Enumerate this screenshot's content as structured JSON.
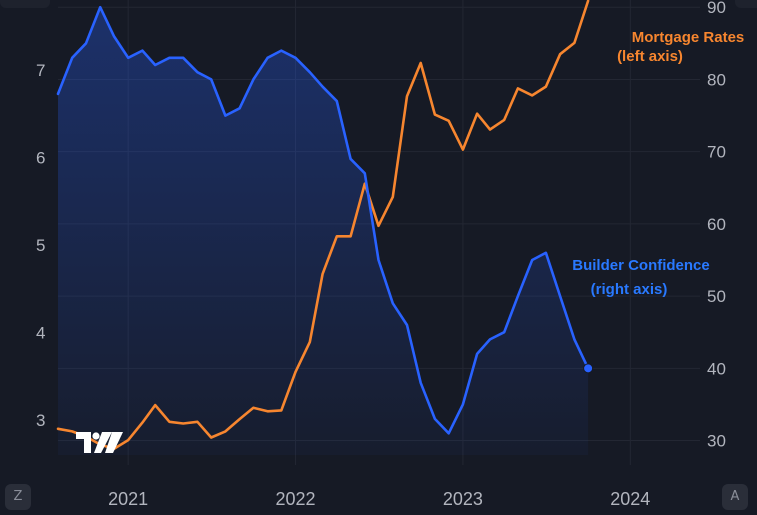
{
  "chart_data": {
    "type": "line",
    "x_axis": {
      "tick_labels": [
        "2021",
        "2022",
        "2023",
        "2024"
      ]
    },
    "left_axis": {
      "tick_labels": [
        "3",
        "4",
        "5",
        "6",
        "7"
      ],
      "range": [
        2.6,
        7.8
      ]
    },
    "right_axis": {
      "tick_labels": [
        "30",
        "40",
        "50",
        "60",
        "70",
        "80",
        "90"
      ],
      "range": [
        28,
        91
      ]
    },
    "grid": true,
    "series": [
      {
        "name": "Mortgage Rates",
        "axis": "left",
        "color": "#f7862f",
        "label_lines": [
          "Mortgage Rates",
          "(left axis)"
        ],
        "points": [
          [
            "2020-08-01",
            2.9
          ],
          [
            "2020-09-01",
            2.87
          ],
          [
            "2020-10-01",
            2.81
          ],
          [
            "2020-11-01",
            2.72
          ],
          [
            "2020-12-01",
            2.67
          ],
          [
            "2021-01-01",
            2.77
          ],
          [
            "2021-02-01",
            2.97
          ],
          [
            "2021-03-01",
            3.17
          ],
          [
            "2021-04-01",
            2.98
          ],
          [
            "2021-05-01",
            2.96
          ],
          [
            "2021-06-01",
            2.98
          ],
          [
            "2021-07-01",
            2.8
          ],
          [
            "2021-08-01",
            2.87
          ],
          [
            "2021-09-01",
            3.01
          ],
          [
            "2021-10-01",
            3.14
          ],
          [
            "2021-11-01",
            3.1
          ],
          [
            "2021-12-01",
            3.11
          ],
          [
            "2022-01-01",
            3.55
          ],
          [
            "2022-02-01",
            3.89
          ],
          [
            "2022-03-01",
            4.67
          ],
          [
            "2022-04-01",
            5.1
          ],
          [
            "2022-05-01",
            5.1
          ],
          [
            "2022-06-01",
            5.7
          ],
          [
            "2022-07-01",
            5.22
          ],
          [
            "2022-08-01",
            5.55
          ],
          [
            "2022-09-01",
            6.7
          ],
          [
            "2022-10-01",
            7.08
          ],
          [
            "2022-11-01",
            6.49
          ],
          [
            "2022-12-01",
            6.42
          ],
          [
            "2023-01-01",
            6.09
          ],
          [
            "2023-02-01",
            6.5
          ],
          [
            "2023-03-01",
            6.32
          ],
          [
            "2023-04-01",
            6.43
          ],
          [
            "2023-05-01",
            6.79
          ],
          [
            "2023-06-01",
            6.71
          ],
          [
            "2023-07-01",
            6.81
          ],
          [
            "2023-08-01",
            7.18
          ],
          [
            "2023-09-01",
            7.31
          ],
          [
            "2023-10-01",
            7.79
          ]
        ]
      },
      {
        "name": "Builder Confidence",
        "axis": "right",
        "color": "#2962ff",
        "label_lines": [
          "Builder Confidence",
          "(right axis)"
        ],
        "area_fill": true,
        "last_point_marker": true,
        "points": [
          [
            "2020-08-01",
            78
          ],
          [
            "2020-09-01",
            83
          ],
          [
            "2020-10-01",
            85
          ],
          [
            "2020-11-01",
            90
          ],
          [
            "2020-12-01",
            86
          ],
          [
            "2021-01-01",
            83
          ],
          [
            "2021-02-01",
            84
          ],
          [
            "2021-03-01",
            82
          ],
          [
            "2021-04-01",
            83
          ],
          [
            "2021-05-01",
            83
          ],
          [
            "2021-06-01",
            81
          ],
          [
            "2021-07-01",
            80
          ],
          [
            "2021-08-01",
            75
          ],
          [
            "2021-09-01",
            76
          ],
          [
            "2021-10-01",
            80
          ],
          [
            "2021-11-01",
            83
          ],
          [
            "2021-12-01",
            84
          ],
          [
            "2022-01-01",
            83
          ],
          [
            "2022-02-01",
            81
          ],
          [
            "2022-03-01",
            79
          ],
          [
            "2022-04-01",
            77
          ],
          [
            "2022-05-01",
            69
          ],
          [
            "2022-06-01",
            67
          ],
          [
            "2022-07-01",
            55
          ],
          [
            "2022-08-01",
            49
          ],
          [
            "2022-09-01",
            46
          ],
          [
            "2022-10-01",
            38
          ],
          [
            "2022-11-01",
            33
          ],
          [
            "2022-12-01",
            31
          ],
          [
            "2023-01-01",
            35
          ],
          [
            "2023-02-01",
            42
          ],
          [
            "2023-03-01",
            44
          ],
          [
            "2023-04-01",
            45
          ],
          [
            "2023-05-01",
            50
          ],
          [
            "2023-06-01",
            55
          ],
          [
            "2023-07-01",
            56
          ],
          [
            "2023-08-01",
            50
          ],
          [
            "2023-09-01",
            44
          ],
          [
            "2023-10-01",
            40
          ]
        ]
      }
    ]
  },
  "ui": {
    "corner_left": "Z",
    "corner_right": "A",
    "logo_text": "TV"
  }
}
